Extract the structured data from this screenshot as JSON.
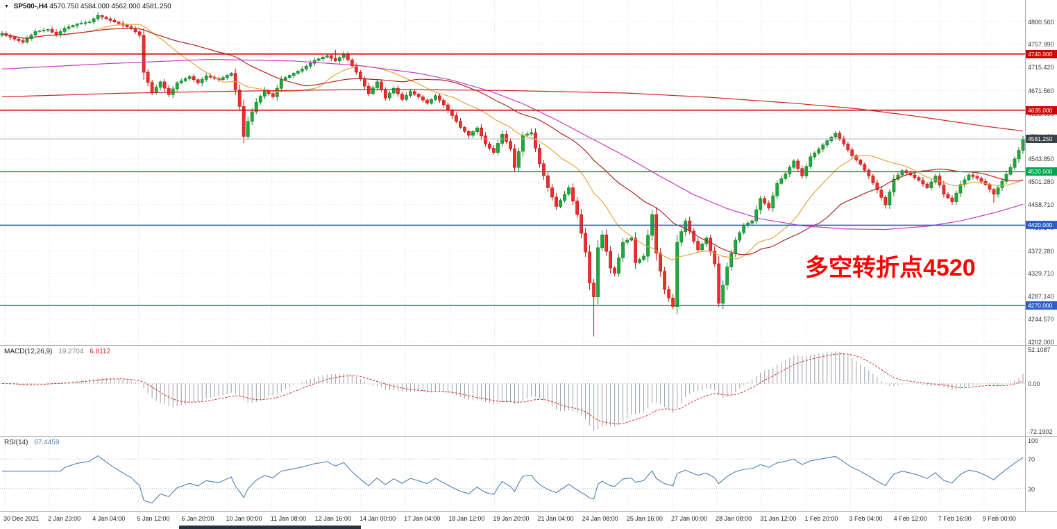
{
  "header": {
    "symbol": "SP500-,H4",
    "open": "4570.750",
    "high": "4584.000",
    "low": "4562.000",
    "close": "4581.250"
  },
  "main_chart": {
    "price_axis_labels": [
      {
        "text": "4800.560",
        "price": 4800.56
      },
      {
        "text": "4757.990",
        "price": 4757.99
      },
      {
        "text": "4715.420",
        "price": 4715.42
      },
      {
        "text": "4671.560",
        "price": 4671.56
      },
      {
        "text": "4628.990",
        "price": 4628.99
      },
      {
        "text": "4586.420",
        "price": 4586.42
      },
      {
        "text": "4543.850",
        "price": 4543.85
      },
      {
        "text": "4501.280",
        "price": 4501.28
      },
      {
        "text": "4458.710",
        "price": 4458.71
      },
      {
        "text": "4416.140",
        "price": 4416.14
      },
      {
        "text": "4372.280",
        "price": 4372.28
      },
      {
        "text": "4329.710",
        "price": 4329.71
      },
      {
        "text": "4287.140",
        "price": 4287.14
      },
      {
        "text": "4244.570",
        "price": 4244.57
      },
      {
        "text": "4202.000",
        "price": 4202.0
      }
    ],
    "hlines": [
      {
        "label": "4740.000",
        "price": 4740,
        "color": "#D40000"
      },
      {
        "label": "4635.000",
        "price": 4635,
        "color": "#D40000"
      },
      {
        "label": "4520.000",
        "price": 4520,
        "color": "#00A650"
      },
      {
        "label": "4420.000",
        "price": 4420,
        "color": "#2E5FC9"
      },
      {
        "label": "4270.000",
        "price": 4270,
        "color": "#2E5FC9"
      }
    ],
    "current_price": {
      "label": "4581.250",
      "price": 4581.25,
      "line_color": "#A8B0B6",
      "badge_color": "#3A4148"
    },
    "annotation": {
      "text": "多空转折点4520",
      "color": "#FF0000"
    }
  },
  "chart_data": {
    "type": "candlestick",
    "title": "SP500- H4 candlestick chart with MACD and RSI",
    "ylim": [
      4196,
      4841
    ],
    "n_candles": 246,
    "close_anchors": [
      [
        0,
        4778
      ],
      [
        3,
        4768
      ],
      [
        5,
        4762
      ],
      [
        8,
        4782
      ],
      [
        11,
        4786
      ],
      [
        13,
        4776
      ],
      [
        15,
        4788
      ],
      [
        18,
        4796
      ],
      [
        21,
        4800
      ],
      [
        23,
        4812
      ],
      [
        25,
        4806
      ],
      [
        28,
        4797
      ],
      [
        31,
        4788
      ],
      [
        33,
        4775
      ],
      [
        34,
        4706
      ],
      [
        36,
        4668
      ],
      [
        38,
        4688
      ],
      [
        40,
        4664
      ],
      [
        42,
        4686
      ],
      [
        45,
        4698
      ],
      [
        47,
        4686
      ],
      [
        49,
        4699
      ],
      [
        52,
        4692
      ],
      [
        55,
        4704
      ],
      [
        57,
        4642
      ],
      [
        58,
        4586
      ],
      [
        59,
        4614
      ],
      [
        61,
        4650
      ],
      [
        63,
        4672
      ],
      [
        65,
        4660
      ],
      [
        67,
        4692
      ],
      [
        69,
        4700
      ],
      [
        72,
        4712
      ],
      [
        75,
        4728
      ],
      [
        78,
        4737
      ],
      [
        80,
        4727
      ],
      [
        82,
        4740
      ],
      [
        84,
        4718
      ],
      [
        86,
        4694
      ],
      [
        88,
        4666
      ],
      [
        90,
        4688
      ],
      [
        92,
        4658
      ],
      [
        94,
        4676
      ],
      [
        96,
        4655
      ],
      [
        98,
        4670
      ],
      [
        100,
        4660
      ],
      [
        102,
        4648
      ],
      [
        104,
        4662
      ],
      [
        106,
        4645
      ],
      [
        108,
        4625
      ],
      [
        110,
        4603
      ],
      [
        112,
        4588
      ],
      [
        114,
        4602
      ],
      [
        116,
        4572
      ],
      [
        118,
        4556
      ],
      [
        120,
        4590
      ],
      [
        122,
        4563
      ],
      [
        123,
        4528
      ],
      [
        125,
        4588
      ],
      [
        127,
        4593
      ],
      [
        129,
        4535
      ],
      [
        131,
        4490
      ],
      [
        133,
        4455
      ],
      [
        135,
        4478
      ],
      [
        136,
        4490
      ],
      [
        138,
        4440
      ],
      [
        140,
        4370
      ],
      [
        141,
        4312
      ],
      [
        142,
        4286
      ],
      [
        143,
        4378
      ],
      [
        144,
        4402
      ],
      [
        146,
        4340
      ],
      [
        147,
        4330
      ],
      [
        149,
        4388
      ],
      [
        151,
        4396
      ],
      [
        152,
        4350
      ],
      [
        154,
        4362
      ],
      [
        156,
        4440
      ],
      [
        157,
        4368
      ],
      [
        159,
        4300
      ],
      [
        161,
        4268
      ],
      [
        162,
        4388
      ],
      [
        164,
        4428
      ],
      [
        166,
        4390
      ],
      [
        167,
        4374
      ],
      [
        169,
        4396
      ],
      [
        171,
        4348
      ],
      [
        172,
        4274
      ],
      [
        174,
        4342
      ],
      [
        176,
        4392
      ],
      [
        178,
        4420
      ],
      [
        180,
        4428
      ],
      [
        182,
        4470
      ],
      [
        184,
        4452
      ],
      [
        186,
        4498
      ],
      [
        188,
        4516
      ],
      [
        190,
        4540
      ],
      [
        192,
        4512
      ],
      [
        194,
        4548
      ],
      [
        196,
        4562
      ],
      [
        198,
        4578
      ],
      [
        200,
        4592
      ],
      [
        202,
        4572
      ],
      [
        204,
        4550
      ],
      [
        206,
        4534
      ],
      [
        208,
        4512
      ],
      [
        210,
        4486
      ],
      [
        212,
        4458
      ],
      [
        214,
        4506
      ],
      [
        216,
        4522
      ],
      [
        218,
        4514
      ],
      [
        220,
        4504
      ],
      [
        222,
        4490
      ],
      [
        224,
        4512
      ],
      [
        226,
        4478
      ],
      [
        228,
        4464
      ],
      [
        230,
        4496
      ],
      [
        232,
        4514
      ],
      [
        234,
        4508
      ],
      [
        236,
        4496
      ],
      [
        238,
        4478
      ],
      [
        240,
        4502
      ],
      [
        242,
        4528
      ],
      [
        244,
        4560
      ],
      [
        245,
        4581.25
      ]
    ],
    "wick_overrides": {
      "23": {
        "high": 4818
      },
      "58": {
        "low": 4573
      },
      "80": {
        "high": 4748
      },
      "127": {
        "high": 4601
      },
      "142": {
        "low": 4212
      },
      "161": {
        "low": 4263
      },
      "172": {
        "low": 4267
      },
      "200": {
        "high": 4596
      },
      "212": {
        "low": 4451
      },
      "238": {
        "low": 4462
      }
    },
    "moving_averages": [
      {
        "name": "ma-fast-orange",
        "type": "sma",
        "period": 20,
        "color": "#E8A33D"
      },
      {
        "name": "ma-medium-darkred",
        "type": "sma",
        "period": 40,
        "color": "#B22222"
      },
      {
        "name": "ma-mid-magenta",
        "type": "polyline",
        "color": "#C837C8",
        "anchors": [
          [
            0,
            4712
          ],
          [
            25,
            4722
          ],
          [
            50,
            4730
          ],
          [
            70,
            4727
          ],
          [
            85,
            4719
          ],
          [
            100,
            4704
          ],
          [
            108,
            4691
          ],
          [
            117,
            4671
          ],
          [
            125,
            4647
          ],
          [
            133,
            4617
          ],
          [
            141,
            4584
          ],
          [
            150,
            4547
          ],
          [
            158,
            4511
          ],
          [
            166,
            4477
          ],
          [
            174,
            4451
          ],
          [
            182,
            4432
          ],
          [
            192,
            4419
          ],
          [
            202,
            4413
          ],
          [
            212,
            4412
          ],
          [
            222,
            4418
          ],
          [
            230,
            4428
          ],
          [
            238,
            4443
          ],
          [
            245,
            4459
          ]
        ]
      },
      {
        "name": "ma-slow-red",
        "type": "polyline",
        "color": "#CC2222",
        "anchors": [
          [
            0,
            4660
          ],
          [
            30,
            4667
          ],
          [
            60,
            4671
          ],
          [
            90,
            4674
          ],
          [
            120,
            4672
          ],
          [
            150,
            4667
          ],
          [
            170,
            4659
          ],
          [
            190,
            4648
          ],
          [
            205,
            4638
          ],
          [
            220,
            4623
          ],
          [
            235,
            4606
          ],
          [
            245,
            4596
          ]
        ]
      }
    ]
  },
  "macd": {
    "label": "MACD(12,26,9)",
    "value_main": "19.2704",
    "value_signal": "6.8112",
    "ylim": [
      -72.1902,
      52.1087
    ],
    "axis_labels": [
      {
        "text": "52.1087",
        "value": 52.1087
      },
      {
        "text": "0.00",
        "value": 0
      },
      {
        "text": "-72.1902",
        "value": -72.1902
      }
    ]
  },
  "rsi": {
    "label": "RSI(14)",
    "value": "67.4459",
    "levels": [
      {
        "text": "100",
        "value": 100
      },
      {
        "text": "70",
        "value": 70
      },
      {
        "text": "30",
        "value": 30
      }
    ]
  },
  "x_axis": {
    "labels": [
      "30 Dec 2021",
      "2 Jan 23:00",
      "4 Jan 04:00",
      "5 Jan 12:00",
      "6 Jan 20:00",
      "10 Jan 00:00",
      "11 Jan 08:00",
      "12 Jan 16:00",
      "14 Jan 00:00",
      "17 Jan 04:00",
      "18 Jan 12:00",
      "19 Jan 20:00",
      "21 Jan 04:00",
      "24 Jan 08:00",
      "25 Jan 16:00",
      "27 Jan 00:00",
      "28 Jan 08:00",
      "31 Jan 12:00",
      "1 Feb 20:00",
      "3 Feb 04:00",
      "4 Feb 12:00",
      "7 Feb 16:00",
      "9 Feb 00:00"
    ]
  },
  "colors": {
    "up_fill": "#1FA83C",
    "up_stroke": "#0E7F27",
    "down_fill": "#EE2E2E",
    "down_stroke": "#B91616",
    "grid": "#E2E2E2",
    "separator": "#ADADAD",
    "macd_hist": "#98A0A8",
    "macd_signal": "#E02828",
    "rsi_line": "#4A7EBB"
  }
}
